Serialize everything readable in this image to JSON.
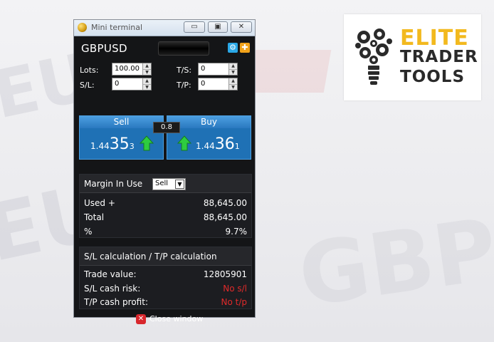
{
  "window": {
    "title": "Mini terminal",
    "symbol": "GBPUSD",
    "lots": {
      "label": "Lots:",
      "value": "100.00"
    },
    "sl": {
      "label": "S/L:",
      "value": "0"
    },
    "ts": {
      "label": "T/S:",
      "value": "0"
    },
    "tp": {
      "label": "T/P:",
      "value": "0"
    },
    "sell": {
      "label": "Sell",
      "price_prefix": "1.44",
      "price_big": "35",
      "price_small": "3"
    },
    "buy": {
      "label": "Buy",
      "price_prefix": "1.44",
      "price_big": "36",
      "price_small": "1"
    },
    "spread": "0.8",
    "margin": {
      "title": "Margin In Use",
      "select_value": "Sell",
      "rows": [
        {
          "label": "Used +",
          "value": "88,645.00"
        },
        {
          "label": "Total",
          "value": "88,645.00"
        },
        {
          "label": "%",
          "value": "9.7%"
        }
      ]
    },
    "calc": {
      "title": "S/L calculation / T/P calculation",
      "rows": [
        {
          "label": "Trade value:",
          "value": "12805901"
        },
        {
          "label": "S/L cash risk:",
          "value": "No s/l"
        },
        {
          "label": "T/P cash profit:",
          "value": "No t/p"
        }
      ]
    },
    "close_label": "Close window"
  },
  "logo": {
    "line1": "ELITE",
    "line2": "TRADER",
    "line3": "TOOLS"
  },
  "colors": {
    "accent_blue": "#1f71b5",
    "logo_yellow": "#f2b91e",
    "negative_red": "#e02a2a",
    "up_green": "#2ecc40"
  }
}
